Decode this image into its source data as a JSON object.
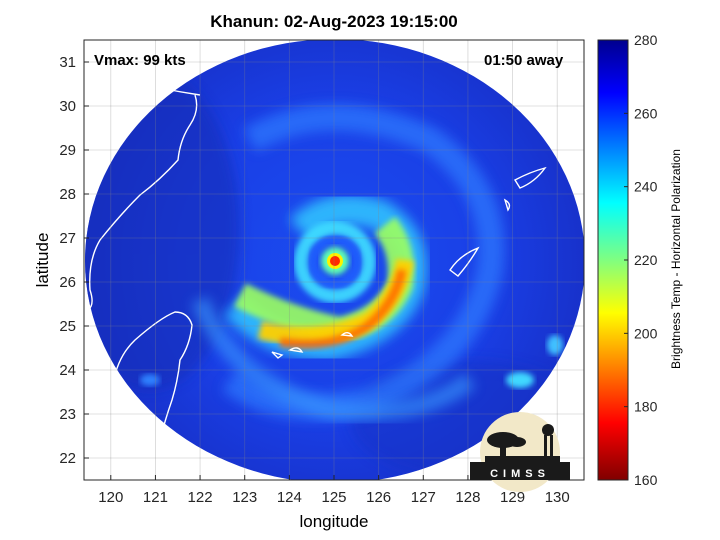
{
  "title": "Khanun: 02-Aug-2023 19:15:00",
  "vmax": "Vmax: 99 kts",
  "time_away": "01:50 away",
  "axes": {
    "xlabel": "longitude",
    "ylabel": "latitude",
    "xticks": [
      "120",
      "121",
      "122",
      "123",
      "124",
      "125",
      "126",
      "127",
      "128",
      "129",
      "130"
    ],
    "yticks": [
      "31",
      "30",
      "29",
      "28",
      "27",
      "26",
      "25",
      "24",
      "23",
      "22"
    ],
    "xlim": [
      119.4,
      130.6
    ],
    "ylim": [
      21.5,
      31.5
    ],
    "grid": true
  },
  "colorbar": {
    "label": "Brightness Temp - Horizontal Polarization",
    "ticks": [
      "280",
      "260",
      "240",
      "220",
      "200",
      "180",
      "160"
    ],
    "range": [
      160,
      280
    ],
    "colormap": "jet"
  },
  "storm": {
    "name": "Khanun",
    "center_lon": 125.0,
    "center_lat": 26.4
  },
  "logo": {
    "text": "CIMSS",
    "icon": "cimss-logo-icon"
  }
}
